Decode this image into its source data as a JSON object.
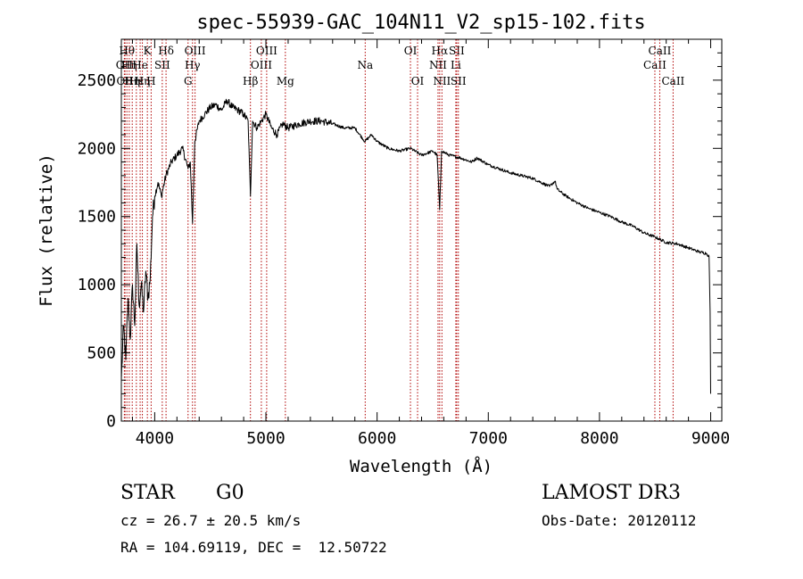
{
  "chart_data": {
    "type": "line",
    "title": "spec-55939-GAC_104N11_V2_sp15-102.fits",
    "xlabel": "Wavelength (Å)",
    "ylabel": "Flux (relative)",
    "xlim": [
      3700,
      9100
    ],
    "ylim": [
      0,
      2800
    ],
    "xticks": [
      4000,
      5000,
      6000,
      7000,
      8000,
      9000
    ],
    "yticks": [
      0,
      500,
      1000,
      1500,
      2000,
      2500
    ],
    "grid": false,
    "series": [
      {
        "name": "spectrum",
        "x": [
          3700,
          3720,
          3740,
          3760,
          3780,
          3800,
          3820,
          3840,
          3860,
          3880,
          3900,
          3920,
          3940,
          3960,
          3980,
          4000,
          4030,
          4060,
          4100,
          4150,
          4200,
          4250,
          4300,
          4320,
          4340,
          4360,
          4400,
          4450,
          4500,
          4550,
          4600,
          4650,
          4700,
          4750,
          4800,
          4840,
          4861,
          4880,
          4920,
          4960,
          5000,
          5050,
          5100,
          5150,
          5200,
          5300,
          5400,
          5500,
          5600,
          5700,
          5800,
          5890,
          5950,
          6000,
          6100,
          6200,
          6300,
          6400,
          6500,
          6540,
          6563,
          6580,
          6650,
          6750,
          6850,
          6900,
          7000,
          7100,
          7200,
          7300,
          7400,
          7500,
          7550,
          7600,
          7620,
          7650,
          7700,
          7800,
          7900,
          8000,
          8100,
          8200,
          8300,
          8400,
          8500,
          8600,
          8700,
          8800,
          8900,
          8960,
          8985,
          8995,
          9000
        ],
        "y": [
          300,
          700,
          450,
          900,
          600,
          1000,
          700,
          1300,
          850,
          1000,
          800,
          1100,
          900,
          1050,
          1500,
          1650,
          1750,
          1650,
          1800,
          1900,
          1950,
          2000,
          1850,
          1900,
          1450,
          2050,
          2200,
          2250,
          2300,
          2320,
          2280,
          2350,
          2300,
          2280,
          2250,
          2200,
          1650,
          2200,
          2150,
          2200,
          2250,
          2150,
          2100,
          2180,
          2150,
          2180,
          2200,
          2200,
          2180,
          2150,
          2150,
          2050,
          2100,
          2050,
          2000,
          1980,
          2000,
          1950,
          1980,
          1950,
          1550,
          1980,
          1950,
          1930,
          1900,
          1930,
          1880,
          1850,
          1820,
          1800,
          1780,
          1740,
          1720,
          1760,
          1700,
          1680,
          1650,
          1600,
          1560,
          1530,
          1500,
          1460,
          1430,
          1380,
          1350,
          1310,
          1300,
          1270,
          1240,
          1230,
          1210,
          800,
          200
        ]
      }
    ],
    "line_annotations": [
      {
        "wavelength": 3727,
        "label": "OII",
        "row": 2
      },
      {
        "wavelength": 3733,
        "label": "OII",
        "row": 3
      },
      {
        "wavelength": 3750,
        "label": "Hθ",
        "row": 1
      },
      {
        "wavelength": 3771,
        "label": "Hη",
        "row": 2
      },
      {
        "wavelength": 3798,
        "label": "Hη",
        "row": 3
      },
      {
        "wavelength": 3835,
        "label": "Hε",
        "row": 3
      },
      {
        "wavelength": 3869,
        "label": "He",
        "row": 2
      },
      {
        "wavelength": 3889,
        "label": "Hη",
        "row": 3
      },
      {
        "wavelength": 3934,
        "label": "K",
        "row": 1
      },
      {
        "wavelength": 3968,
        "label": "H",
        "row": 3
      },
      {
        "wavelength": 4068,
        "label": "SII",
        "row": 2
      },
      {
        "wavelength": 4102,
        "label": "Hδ",
        "row": 1
      },
      {
        "wavelength": 4300,
        "label": "G",
        "row": 3
      },
      {
        "wavelength": 4340,
        "label": "Hγ",
        "row": 2
      },
      {
        "wavelength": 4363,
        "label": "OIII",
        "row": 1
      },
      {
        "wavelength": 4861,
        "label": "Hβ",
        "row": 3
      },
      {
        "wavelength": 4959,
        "label": "OIII",
        "row": 2
      },
      {
        "wavelength": 5007,
        "label": "OIII",
        "row": 1
      },
      {
        "wavelength": 5175,
        "label": "Mg",
        "row": 3
      },
      {
        "wavelength": 5893,
        "label": "Na",
        "row": 2
      },
      {
        "wavelength": 6300,
        "label": "OI",
        "row": 1
      },
      {
        "wavelength": 6364,
        "label": "OI",
        "row": 3
      },
      {
        "wavelength": 6548,
        "label": "NII",
        "row": 2
      },
      {
        "wavelength": 6563,
        "label": "Hα",
        "row": 1
      },
      {
        "wavelength": 6583,
        "label": "NII",
        "row": 3
      },
      {
        "wavelength": 6708,
        "label": "Li",
        "row": 2
      },
      {
        "wavelength": 6716,
        "label": "SII",
        "row": 1
      },
      {
        "wavelength": 6731,
        "label": "SII",
        "row": 3
      },
      {
        "wavelength": 8498,
        "label": "CaII",
        "row": 2
      },
      {
        "wavelength": 8542,
        "label": "CaII",
        "row": 1
      },
      {
        "wavelength": 8662,
        "label": "CaII",
        "row": 3
      }
    ]
  },
  "info": {
    "object_class": "STAR",
    "subclass": "G0",
    "survey": "LAMOST DR3",
    "redshift_line": "cz = 26.7 ± 20.5 km/s",
    "obs_date_line": "Obs-Date: 20120112",
    "coords_line": "RA = 104.69119, DEC =  12.50722"
  }
}
